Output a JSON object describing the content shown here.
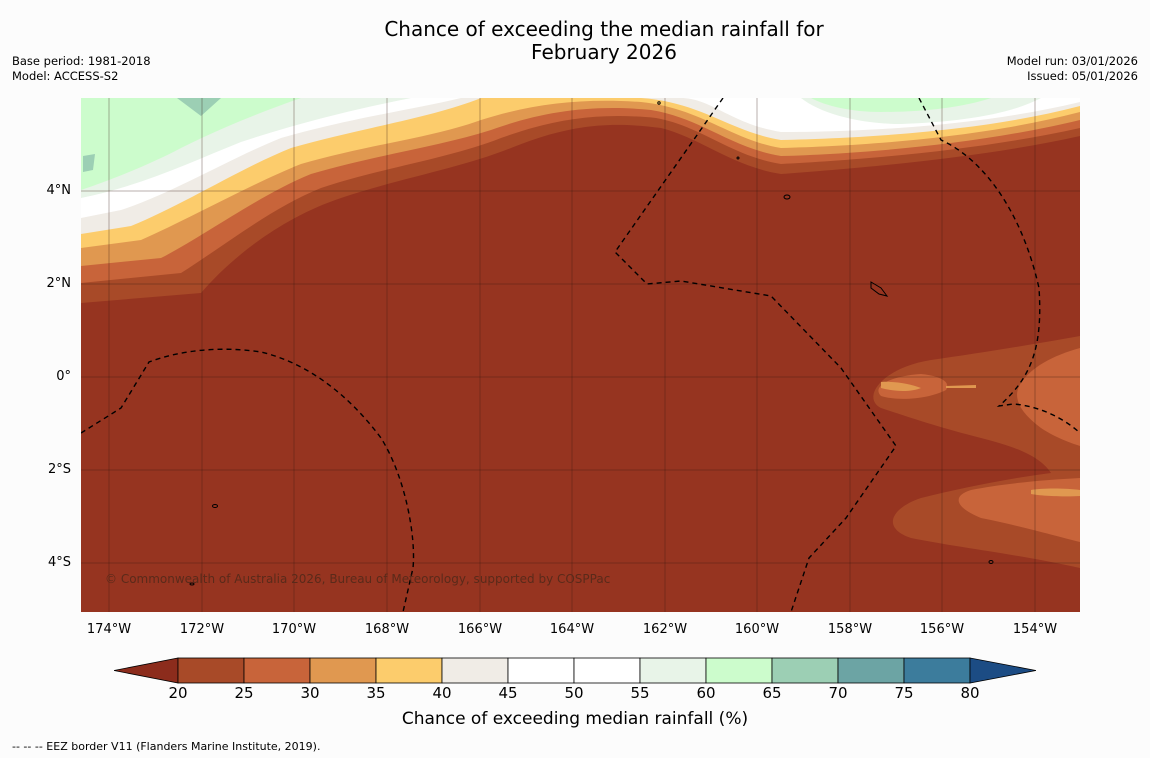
{
  "title": {
    "line1": "Chance of exceeding the median rainfall for",
    "line2": "February 2026"
  },
  "meta_left": {
    "base_period": "Base period: 1981-2018",
    "model": "Model: ACCESS-S2"
  },
  "meta_right": {
    "model_run": "Model run: 03/01/2026",
    "issued": "Issued: 05/01/2026"
  },
  "map": {
    "copyright": "© Commonwealth of Australia 2026, Bureau of Meteorology, supported by COSPPac",
    "latitude_labels": [
      "4°N",
      "2°N",
      "0°",
      "2°S",
      "4°S"
    ],
    "longitude_labels": [
      "174°W",
      "172°W",
      "170°W",
      "168°W",
      "166°W",
      "164°W",
      "162°W",
      "160°W",
      "158°W",
      "156°W",
      "154°W"
    ]
  },
  "colorbar": {
    "label": "Chance of exceeding median rainfall (%)",
    "ticks": [
      "20",
      "25",
      "30",
      "35",
      "40",
      "45",
      "50",
      "55",
      "60",
      "65",
      "70",
      "75",
      "80"
    ],
    "colors": [
      "#8c2c1c",
      "#a84a28",
      "#c8643a",
      "#e09850",
      "#fccc6c",
      "#f0ece6",
      "#ffffff",
      "#ffffff",
      "#e8f4e8",
      "#ccfccc",
      "#9ccfb4",
      "#6ca4a4",
      "#3c7c9c",
      "#1c4c84"
    ]
  },
  "footer": "--  --  -- EEZ border V11 (Flanders Marine Institute, 2019)."
}
